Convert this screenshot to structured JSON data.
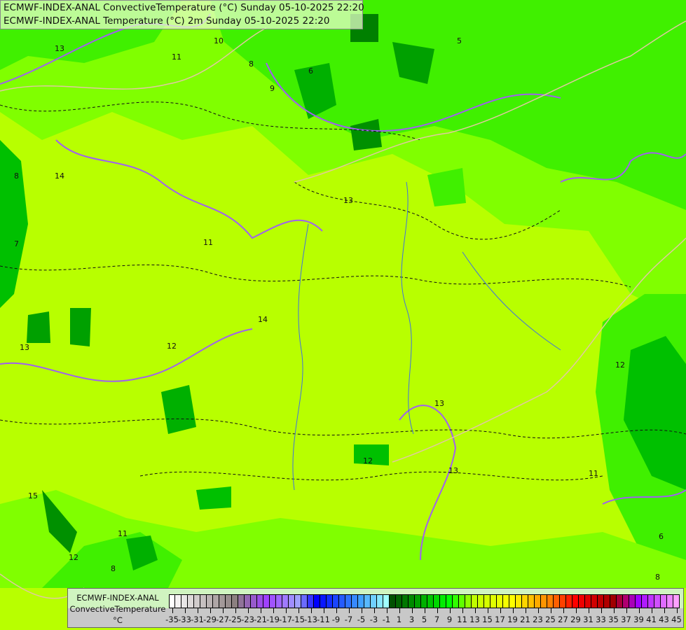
{
  "title": {
    "line1": "ECMWF-INDEX-ANAL ConvectiveTemperature (°C) Sunday 05-10-2025 22:20",
    "line2": "ECMWF-INDEX-ANAL Temperature (°C) 2m Sunday 05-10-2025 22:20"
  },
  "legend": {
    "model": "ECMWF-INDEX-ANAL",
    "parameter": "ConvectiveTemperature",
    "unit": "°C",
    "min": -35,
    "max": 45,
    "step": 1,
    "tick_labels": [
      "-35",
      "-33",
      "-31",
      "-29",
      "-27",
      "-25",
      "-23",
      "-21",
      "-19",
      "-17",
      "-15",
      "-13",
      "-11",
      "-9",
      "-7",
      "-5",
      "-3",
      "-1",
      "1",
      "3",
      "5",
      "7",
      "9",
      "11",
      "13",
      "15",
      "17",
      "19",
      "21",
      "23",
      "25",
      "27",
      "29",
      "31",
      "33",
      "35",
      "37",
      "39",
      "41",
      "43",
      "45"
    ],
    "color_stops": [
      {
        "v": -35,
        "c": "#ffffff"
      },
      {
        "v": -25,
        "c": "#8c8080"
      },
      {
        "v": -20,
        "c": "#a040ff"
      },
      {
        "v": -15,
        "c": "#a0a0ff"
      },
      {
        "v": -12,
        "c": "#0000ff"
      },
      {
        "v": -5,
        "c": "#40a0ff"
      },
      {
        "v": -1,
        "c": "#a0ffff"
      },
      {
        "v": 0,
        "c": "#005000"
      },
      {
        "v": 9,
        "c": "#00ff00"
      },
      {
        "v": 13,
        "c": "#c0ff00"
      },
      {
        "v": 19,
        "c": "#ffff00"
      },
      {
        "v": 25,
        "c": "#ff8000"
      },
      {
        "v": 29,
        "c": "#ff0000"
      },
      {
        "v": 35,
        "c": "#a00000"
      },
      {
        "v": 37,
        "c": "#b00070"
      },
      {
        "v": 39,
        "c": "#a000ff"
      },
      {
        "v": 45,
        "c": "#ffa0ff"
      }
    ]
  },
  "map": {
    "contour_labels": [
      "13",
      "11",
      "10",
      "9",
      "8",
      "6",
      "5",
      "13",
      "14",
      "8",
      "7",
      "11",
      "13",
      "12",
      "14",
      "15",
      "13",
      "12",
      "13",
      "12",
      "11",
      "8",
      "11",
      "12",
      "6",
      "8"
    ],
    "colors": {
      "base": "#b8ff00",
      "green1": "#80ff00",
      "green2": "#40f000",
      "green3": "#00d000",
      "green4": "#009000",
      "isotherm": "#a060f0",
      "border": "#e0c8a0",
      "river": "#4070e0"
    }
  }
}
